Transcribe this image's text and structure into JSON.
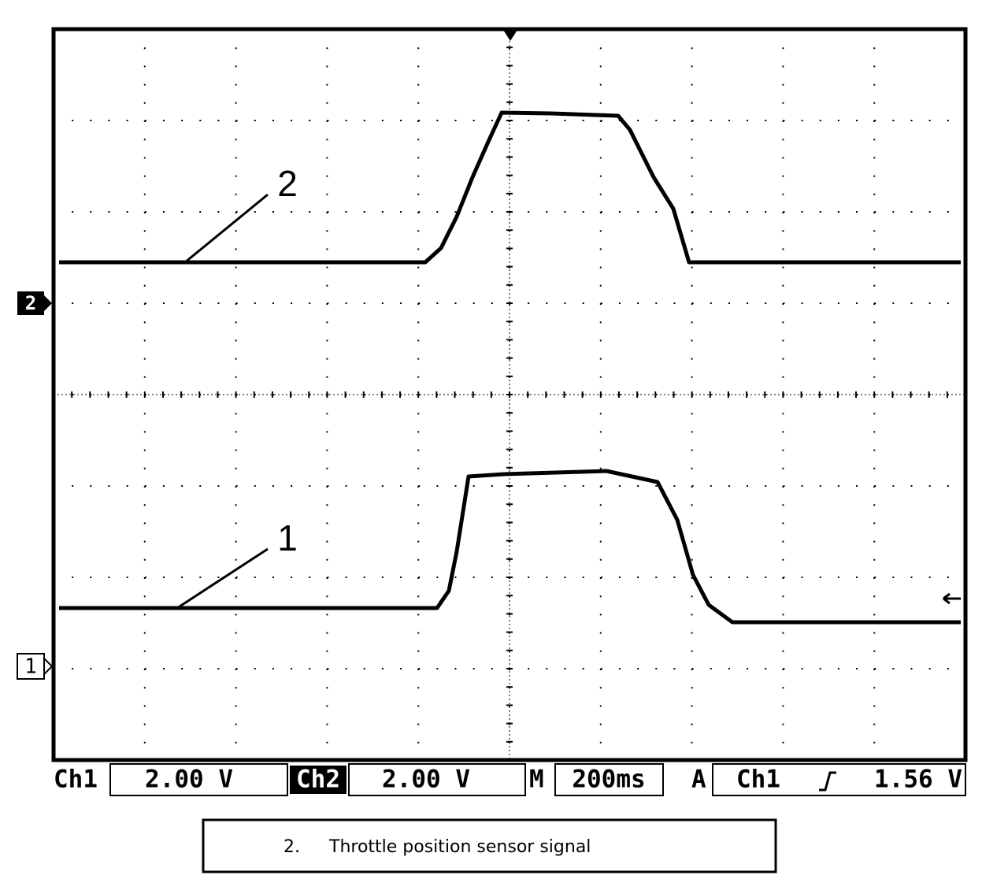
{
  "screen": {
    "trace_labels": {
      "ch2": "2",
      "ch1": "1"
    },
    "ground_markers": {
      "ch2": "2",
      "ch1": "1"
    },
    "status_bar": {
      "ch1_label": "Ch1",
      "ch1_scale": "2.00 V",
      "ch2_label": "Ch2",
      "ch2_scale": "2.00 V",
      "time_label": "M",
      "time_scale": "200ms",
      "trigger_label": "A",
      "trigger_source": "Ch1",
      "trigger_level": "1.56 V"
    }
  },
  "caption": {
    "number": "2.",
    "text": "Throttle position sensor signal"
  }
}
